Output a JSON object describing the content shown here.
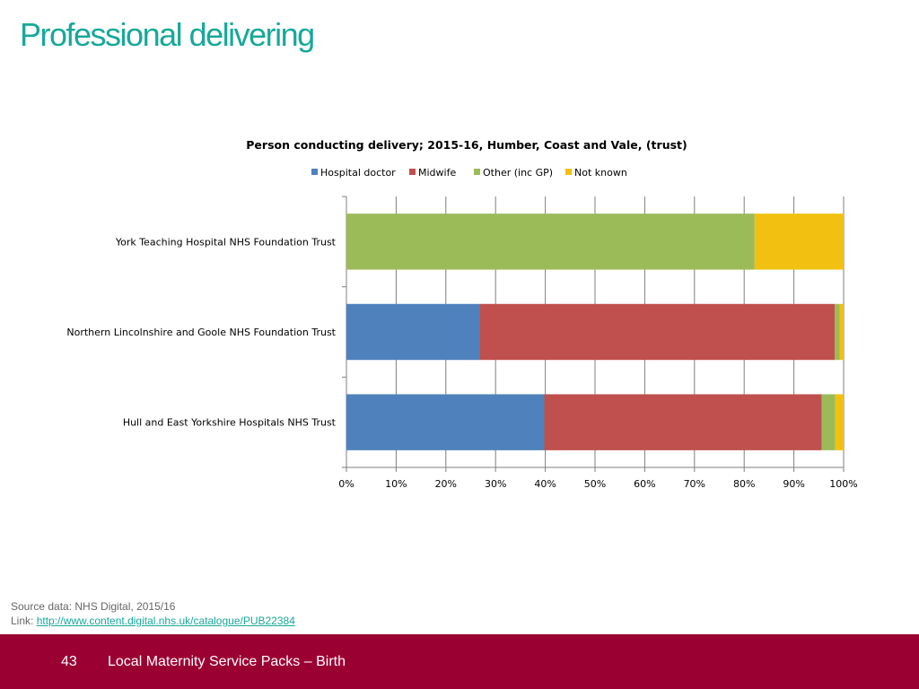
{
  "slide": {
    "title": "Professional delivering"
  },
  "chart_data": {
    "type": "bar",
    "orientation": "horizontal",
    "stacked": "percent",
    "title": "Person conducting delivery; 2015-16, Humber, Coast and Vale, (trust)",
    "xlabel": "",
    "ylabel": "",
    "xlim": [
      0,
      100
    ],
    "x_ticks": [
      "0%",
      "10%",
      "20%",
      "30%",
      "40%",
      "50%",
      "60%",
      "70%",
      "80%",
      "90%",
      "100%"
    ],
    "grid": true,
    "legend_position": "top",
    "categories": [
      "York Teaching Hospital NHS Foundation Trust",
      "Northern Lincolnshire and Goole NHS Foundation Trust",
      "Hull and East Yorkshire Hospitals NHS Trust"
    ],
    "series": [
      {
        "name": "Hospital doctor",
        "color": "#4f81bd",
        "values": [
          0,
          26.8,
          39.8
        ]
      },
      {
        "name": "Midwife",
        "color": "#c0504d",
        "values": [
          0,
          71.4,
          55.8
        ]
      },
      {
        "name": "Other (inc GP)",
        "color": "#9bbb59",
        "values": [
          82.1,
          1.0,
          2.7
        ]
      },
      {
        "name": "Not known",
        "color": "#f2c010",
        "values": [
          17.9,
          0.8,
          1.7
        ]
      }
    ]
  },
  "source": {
    "line1": "Source data: NHS Digital, 2015/16",
    "link_prefix": "Link: ",
    "link_text": "http://www.content.digital.nhs.uk/catalogue/PUB22384"
  },
  "footer": {
    "page_number": "43",
    "text": "Local Maternity Service Packs – Birth"
  }
}
